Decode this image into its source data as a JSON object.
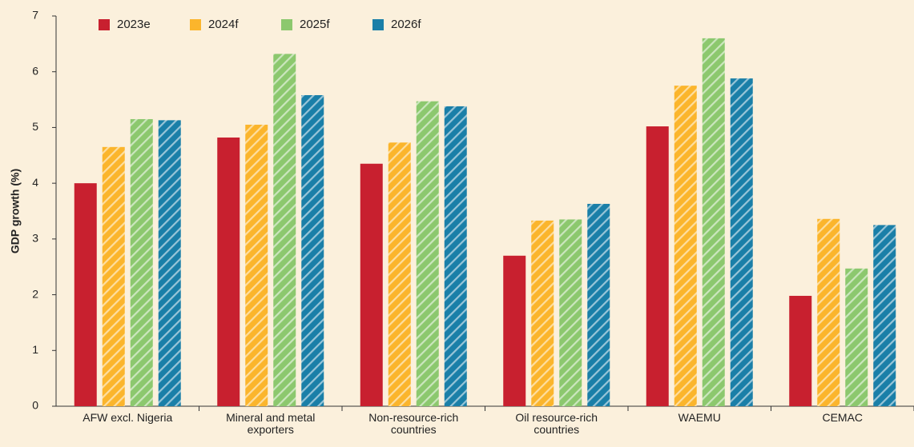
{
  "chart_data": {
    "type": "bar",
    "y_label": "GDP growth (%)",
    "categories": [
      "AFW excl. Nigeria",
      "Mineral and metal exporters",
      "Non-resource-rich countries",
      "Oil resource-rich countries",
      "WAEMU",
      "CEMAC"
    ],
    "series": [
      {
        "name": "2023e",
        "color": "#c8202f",
        "hatch": false,
        "values": [
          4.0,
          4.82,
          4.35,
          2.7,
          5.02,
          1.98
        ]
      },
      {
        "name": "2024f",
        "color": "#fbb52c",
        "hatch": true,
        "values": [
          4.65,
          5.05,
          4.73,
          3.33,
          5.75,
          3.36
        ]
      },
      {
        "name": "2025f",
        "color": "#8cc86e",
        "hatch": true,
        "values": [
          5.15,
          6.32,
          5.47,
          3.35,
          6.6,
          2.47
        ]
      },
      {
        "name": "2026f",
        "color": "#1a7fa8",
        "hatch": true,
        "values": [
          5.13,
          5.58,
          5.38,
          3.63,
          5.88,
          3.25
        ]
      }
    ],
    "ylim": [
      0,
      7
    ],
    "yticks": [
      0,
      1,
      2,
      3,
      4,
      5,
      6,
      7
    ],
    "grid": false,
    "legend": "top"
  }
}
